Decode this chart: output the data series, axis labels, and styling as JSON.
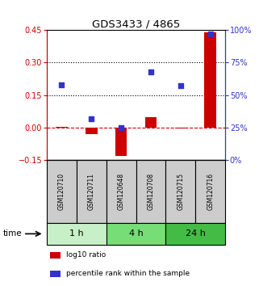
{
  "title": "GDS3433 / 4865",
  "samples": [
    "GSM120710",
    "GSM120711",
    "GSM120648",
    "GSM120708",
    "GSM120715",
    "GSM120716"
  ],
  "log10_ratio": [
    0.005,
    -0.03,
    -0.13,
    0.05,
    -0.005,
    0.44
  ],
  "percentile_rank_raw": [
    58,
    32,
    25,
    68,
    57,
    97
  ],
  "time_groups": [
    {
      "label": "1 h",
      "start": 0,
      "end": 2,
      "color": "#c8f0c8"
    },
    {
      "label": "4 h",
      "start": 2,
      "end": 4,
      "color": "#77dd77"
    },
    {
      "label": "24 h",
      "start": 4,
      "end": 6,
      "color": "#44bb44"
    }
  ],
  "red_color": "#cc0000",
  "blue_color": "#3333cc",
  "ylim_left": [
    -0.15,
    0.45
  ],
  "ylim_right": [
    0,
    100
  ],
  "yticks_left": [
    -0.15,
    0.0,
    0.15,
    0.3,
    0.45
  ],
  "yticks_right": [
    0,
    25,
    50,
    75,
    100
  ],
  "hline_y": [
    0.15,
    0.3
  ],
  "bar_width": 0.4,
  "sample_bg_color": "#cccccc",
  "sample_border_color": "#000000",
  "legend_items": [
    {
      "color": "#cc0000",
      "label": "log10 ratio"
    },
    {
      "color": "#3333cc",
      "label": "percentile rank within the sample"
    }
  ]
}
